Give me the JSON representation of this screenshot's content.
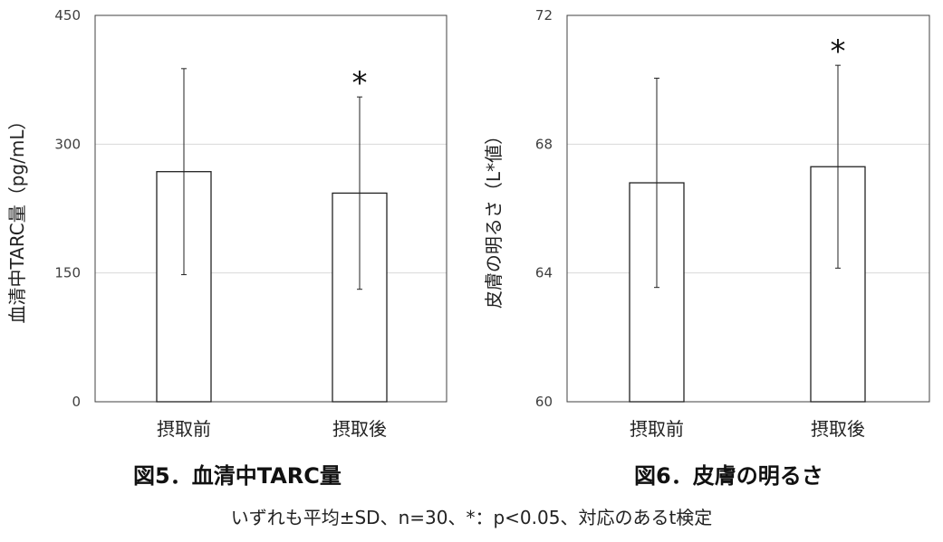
{
  "chart_data": [
    {
      "type": "bar",
      "title": "図5．血清中TARC量",
      "ylabel": "血清中TARC量（pg/mL）",
      "categories": [
        "摂取前",
        "摂取後"
      ],
      "values": [
        268,
        243
      ],
      "error": [
        120,
        112
      ],
      "significance": [
        "",
        "*"
      ],
      "ylim": [
        0,
        450
      ],
      "yticks": [
        0,
        150,
        300,
        450
      ],
      "grid": true
    },
    {
      "type": "bar",
      "title": "図6．皮膚の明るさ",
      "ylabel": "皮膚の明るさ（L*値）",
      "categories": [
        "摂取前",
        "摂取後"
      ],
      "values": [
        66.8,
        67.3
      ],
      "error": [
        3.25,
        3.15
      ],
      "significance": [
        "",
        "*"
      ],
      "ylim": [
        60,
        72
      ],
      "yticks": [
        60,
        64,
        68,
        72
      ],
      "grid": true
    }
  ],
  "footnote": "いずれも平均±SD、n=30、*：p<0.05、対応のあるt検定"
}
